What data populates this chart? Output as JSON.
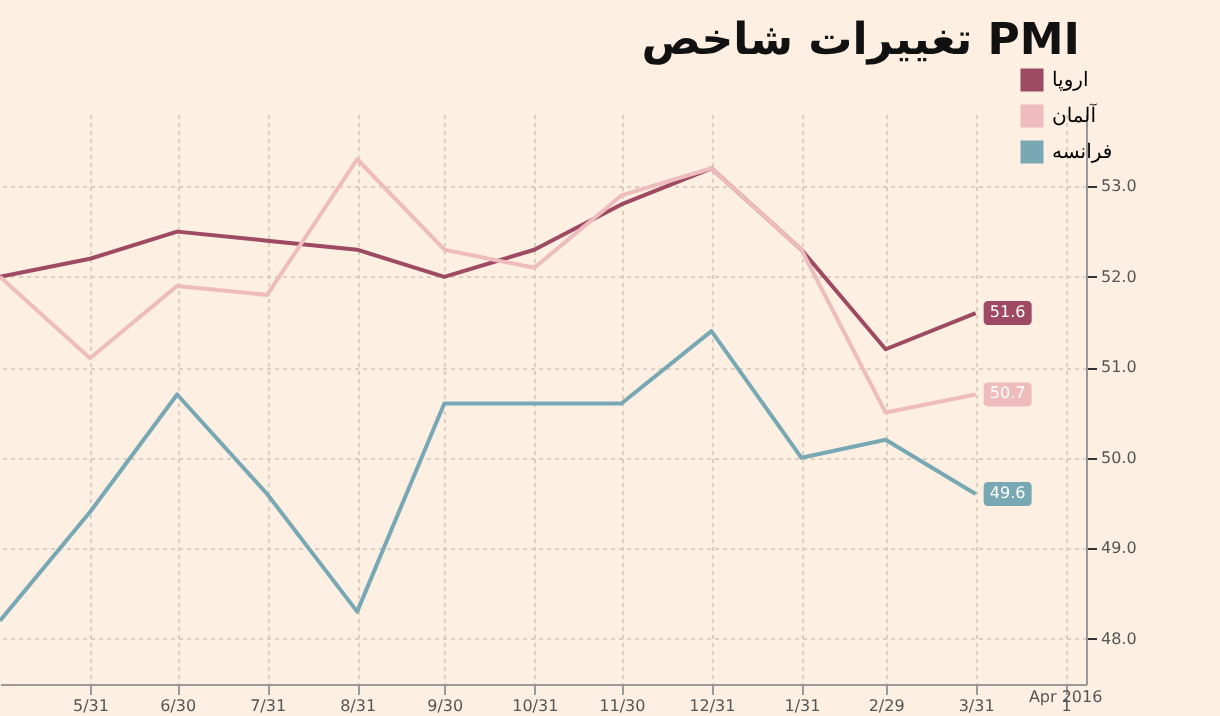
{
  "chart_data": {
    "type": "line",
    "title": "تغییرات شاخص PMI",
    "x": [
      "2015-04-30",
      "2015-05-31",
      "2015-06-30",
      "2015-07-31",
      "2015-08-31",
      "2015-09-30",
      "2015-10-31",
      "2015-11-30",
      "2015-12-31",
      "2016-01-31",
      "2016-02-29",
      "2016-03-31"
    ],
    "series": [
      {
        "name": "اروپا",
        "color": "#9e4a63",
        "values": [
          52.0,
          52.2,
          52.5,
          52.4,
          52.3,
          52.0,
          52.3,
          52.8,
          53.2,
          52.3,
          51.2,
          51.6
        ],
        "value_labels": [
          null,
          null,
          null,
          null,
          null,
          null,
          null,
          null,
          null,
          null,
          null,
          "51.6"
        ]
      },
      {
        "name": "آلمان",
        "color": "#eebcbc",
        "values": [
          52.0,
          51.1,
          51.9,
          51.8,
          53.3,
          52.3,
          52.1,
          52.9,
          53.2,
          52.3,
          50.5,
          50.7
        ],
        "value_labels": [
          null,
          null,
          null,
          null,
          null,
          null,
          null,
          null,
          null,
          null,
          null,
          "50.7"
        ]
      },
      {
        "name": "فرانسه",
        "color": "#78a8b4",
        "values": [
          48.2,
          49.4,
          50.7,
          49.6,
          48.3,
          50.6,
          50.6,
          50.6,
          51.4,
          50.0,
          50.2,
          49.6
        ],
        "value_labels": [
          null,
          null,
          null,
          null,
          null,
          null,
          null,
          null,
          null,
          null,
          null,
          "49.6"
        ]
      }
    ],
    "xlim": [
      "2015-04-30",
      "2016-05-08"
    ],
    "xticks": [
      {
        "value": "2015-05-31",
        "label": "5/31"
      },
      {
        "value": "2015-06-30",
        "label": "6/30"
      },
      {
        "value": "2015-07-31",
        "label": "7/31"
      },
      {
        "value": "2015-08-31",
        "label": "8/31"
      },
      {
        "value": "2015-09-30",
        "label": "9/30"
      },
      {
        "value": "2015-10-31",
        "label": "10/31"
      },
      {
        "value": "2015-11-30",
        "label": "11/30"
      },
      {
        "value": "2015-12-31",
        "label": "12/31"
      },
      {
        "value": "2016-01-31",
        "label": "1/31"
      },
      {
        "value": "2016-02-29",
        "label": "2/29"
      },
      {
        "value": "2016-03-31",
        "label": "3/31"
      },
      {
        "value": "2016-05-01",
        "label": "1"
      }
    ],
    "ylim": [
      47.5,
      53.8
    ],
    "yticks": [
      {
        "value": 48,
        "label": "48.0"
      },
      {
        "value": 49,
        "label": "49.0"
      },
      {
        "value": 50,
        "label": "50.0"
      },
      {
        "value": 51,
        "label": "51.0"
      },
      {
        "value": 52,
        "label": "52.0"
      },
      {
        "value": 53,
        "label": "53.0"
      }
    ],
    "annotations": [
      "Apr 2016"
    ],
    "grid": true,
    "legend": "top right",
    "marker": "none",
    "line_style": "solid"
  }
}
